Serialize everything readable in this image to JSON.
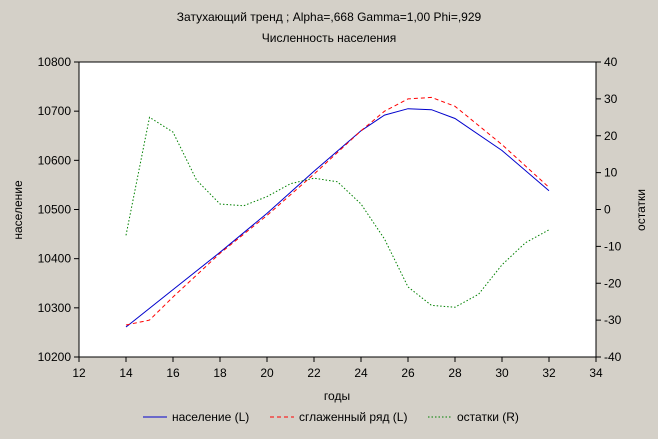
{
  "chart_data": {
    "type": "line",
    "title": "Затухающий тренд ; Alpha=,668 Gamma=1,00 Phi=,929",
    "subtitle": "Численность населения",
    "xlabel": "годы",
    "ylabel_left": "население",
    "ylabel_right": "остатки",
    "xlim": [
      12,
      34
    ],
    "ylim_left": [
      10200,
      10800
    ],
    "ylim_right": [
      -40,
      40
    ],
    "x_ticks": [
      12,
      14,
      16,
      18,
      20,
      22,
      24,
      26,
      28,
      30,
      32,
      34
    ],
    "y_left_ticks": [
      10200,
      10300,
      10400,
      10500,
      10600,
      10700,
      10800
    ],
    "y_right_ticks": [
      -40,
      -30,
      -20,
      -10,
      0,
      10,
      20,
      30,
      40
    ],
    "grid": false,
    "legend_position": "bottom",
    "series": [
      {
        "name": "население (L)",
        "axis": "left",
        "color": "#0000cc",
        "style": "solid",
        "x": [
          14,
          16,
          18,
          20,
          22,
          24,
          25,
          26,
          27,
          28,
          30,
          32
        ],
        "values": [
          10261,
          10337,
          10413,
          10492,
          10578,
          10660,
          10692,
          10705,
          10703,
          10685,
          10620,
          10538
        ]
      },
      {
        "name": "сглаженный ряд (L)",
        "axis": "left",
        "color": "#ff0000",
        "style": "dashed",
        "x": [
          14,
          15,
          16,
          18,
          20,
          22,
          24,
          25,
          26,
          27,
          28,
          30,
          32
        ],
        "values": [
          10265,
          10275,
          10322,
          10411,
          10488,
          10572,
          10660,
          10700,
          10725,
          10728,
          10710,
          10632,
          10545
        ]
      },
      {
        "name": "остатки (R)",
        "axis": "right",
        "color": "#008000",
        "style": "dotted",
        "x": [
          14,
          15,
          16,
          17,
          18,
          19,
          20,
          21,
          22,
          23,
          24,
          25,
          26,
          27,
          28,
          29,
          30,
          31,
          32
        ],
        "values": [
          -7,
          25,
          21,
          8,
          1.5,
          1,
          3.5,
          7,
          8.5,
          7.5,
          1.5,
          -8,
          -21,
          -26,
          -26.5,
          -23,
          -15,
          -9,
          -5.5
        ]
      }
    ]
  }
}
